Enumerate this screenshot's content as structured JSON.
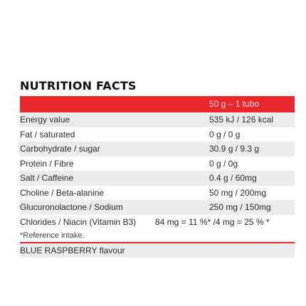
{
  "title": "NUTRITION FACTS",
  "header": {
    "serving": "50 g – 1 tubo"
  },
  "rows": [
    {
      "label": "Energy value",
      "value": "535 kJ / 126 kcal"
    },
    {
      "label": "Fat / saturated",
      "value": "0 g / 0 g"
    },
    {
      "label": "Carbohydrate / sugar",
      "value": "30.9 g / 9.3 g"
    },
    {
      "label": "Protein / Fibre",
      "value": "0 g / 0g"
    },
    {
      "label": "Salt / Caffeine",
      "value": "0.4 g / 60mg"
    },
    {
      "label": "Choline / Beta-alanine",
      "value": "50 mg / 200mg"
    },
    {
      "label": "Glucuronolactone / Sodium",
      "value": "250 mg / 150mg"
    },
    {
      "label": "Chlorides / Niacin (Vitamin B3)",
      "value": "84 mg = 11 %* /4 mg = 25 % *"
    }
  ],
  "note": "*Reference intake.",
  "flavour": "BLUE RASPBERRY flavour"
}
